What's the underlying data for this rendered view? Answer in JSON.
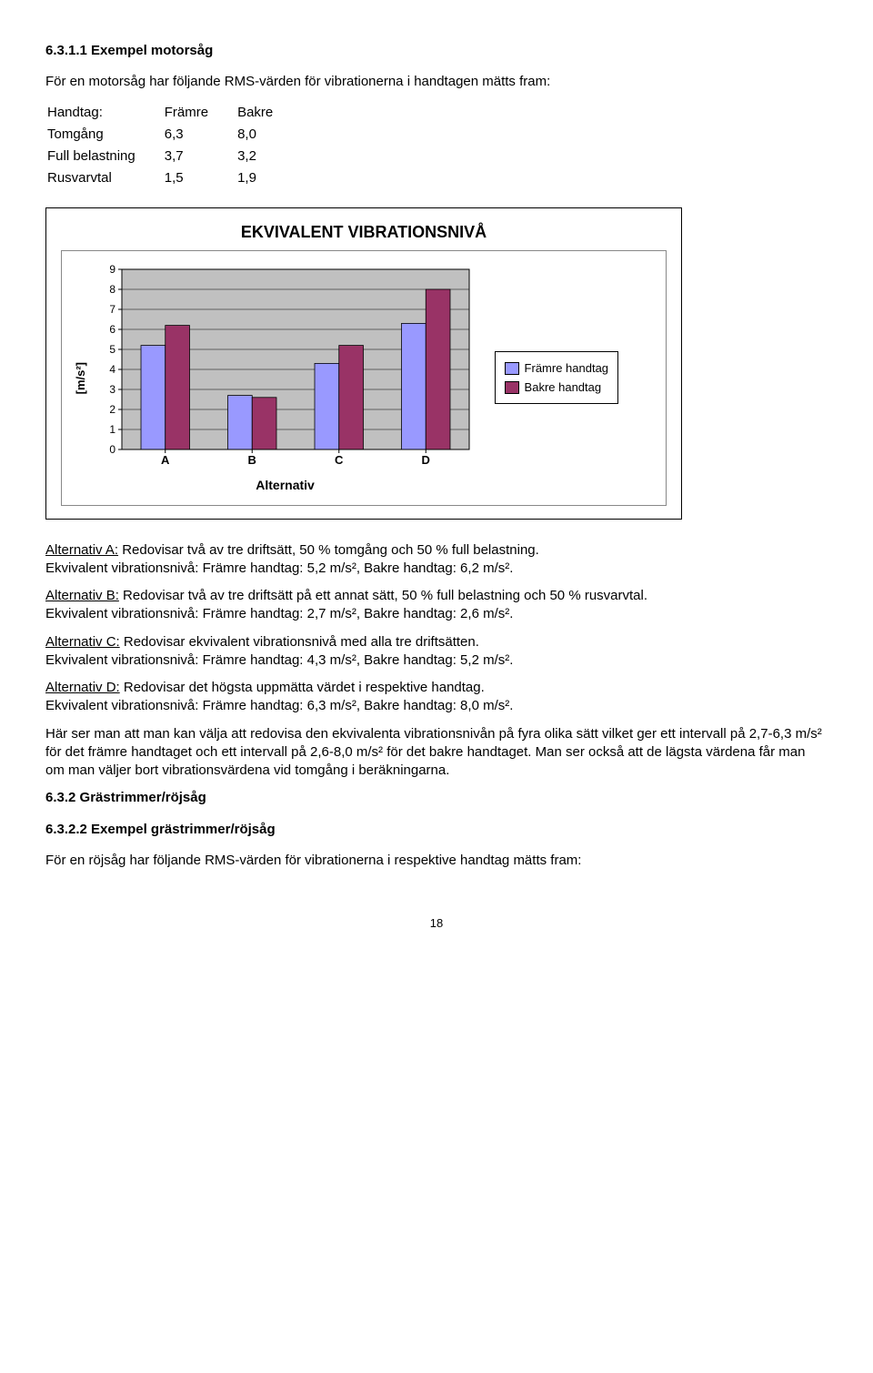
{
  "section1_num": "6.3.1.1 Exempel motorsåg",
  "intro1": "För en motorsåg har följande RMS-värden för vibrationerna i handtagen mätts fram:",
  "table": {
    "head": [
      "Handtag:",
      "Främre",
      "Bakre"
    ],
    "rows": [
      [
        "Tomgång",
        "6,3",
        "8,0"
      ],
      [
        "Full belastning",
        "3,7",
        "3,2"
      ],
      [
        "Rusvarvtal",
        "1,5",
        "1,9"
      ]
    ]
  },
  "chart": {
    "title": "EKVIVALENT VIBRATIONSNIVÅ",
    "ylabel": "[m/s²]",
    "xlabel": "Alternativ",
    "categories": [
      "A",
      "B",
      "C",
      "D"
    ],
    "series": [
      {
        "name": "Främre handtag",
        "color": "#9999ff",
        "values": [
          5.2,
          2.7,
          4.3,
          6.3
        ]
      },
      {
        "name": "Bakre handtag",
        "color": "#993366",
        "values": [
          6.2,
          2.6,
          5.2,
          8.0
        ]
      }
    ],
    "ymax": 9,
    "ytick": 1,
    "plot_bg": "#c0c0c0",
    "grid_color": "#000000",
    "bar_border": "#000000",
    "outer_border": "#808080"
  },
  "alt": {
    "A": {
      "head": "Alternativ A:",
      "desc": " Redovisar två av tre driftsätt, 50 % tomgång och 50 % full belastning.",
      "ekv": "Ekvivalent vibrationsnivå: Främre handtag: 5,2 m/s², Bakre handtag: 6,2 m/s²."
    },
    "B": {
      "head": "Alternativ B:",
      "desc": " Redovisar två av tre driftsätt på ett annat sätt, 50 % full belastning och 50 % rusvarvtal.",
      "ekv": "Ekvivalent vibrationsnivå: Främre handtag: 2,7 m/s², Bakre handtag: 2,6 m/s²."
    },
    "C": {
      "head": "Alternativ C:",
      "desc": " Redovisar ekvivalent vibrationsnivå med alla tre driftsätten.",
      "ekv": "Ekvivalent vibrationsnivå: Främre handtag: 4,3 m/s², Bakre handtag: 5,2 m/s²."
    },
    "D": {
      "head": "Alternativ D:",
      "desc": " Redovisar det högsta uppmätta värdet i respektive handtag.",
      "ekv": "Ekvivalent vibrationsnivå: Främre handtag: 6,3 m/s², Bakre handtag: 8,0 m/s²."
    }
  },
  "concl": "Här ser man att man kan välja att redovisa den ekvivalenta vibrationsnivån på fyra olika sätt vilket ger ett intervall på 2,7-6,3 m/s² för det främre handtaget och ett intervall på 2,6-8,0 m/s² för det bakre handtaget. Man ser också att de lägsta värdena får man om man väljer bort vibrationsvärdena vid tomgång i beräkningarna.",
  "section2_num": "6.3.2 Grästrimmer/röjsåg",
  "section3_num": "6.3.2.2 Exempel grästrimmer/röjsåg",
  "intro2": "För en röjsåg har följande RMS-värden för vibrationerna i respektive handtag mätts fram:",
  "pagenum": "18"
}
